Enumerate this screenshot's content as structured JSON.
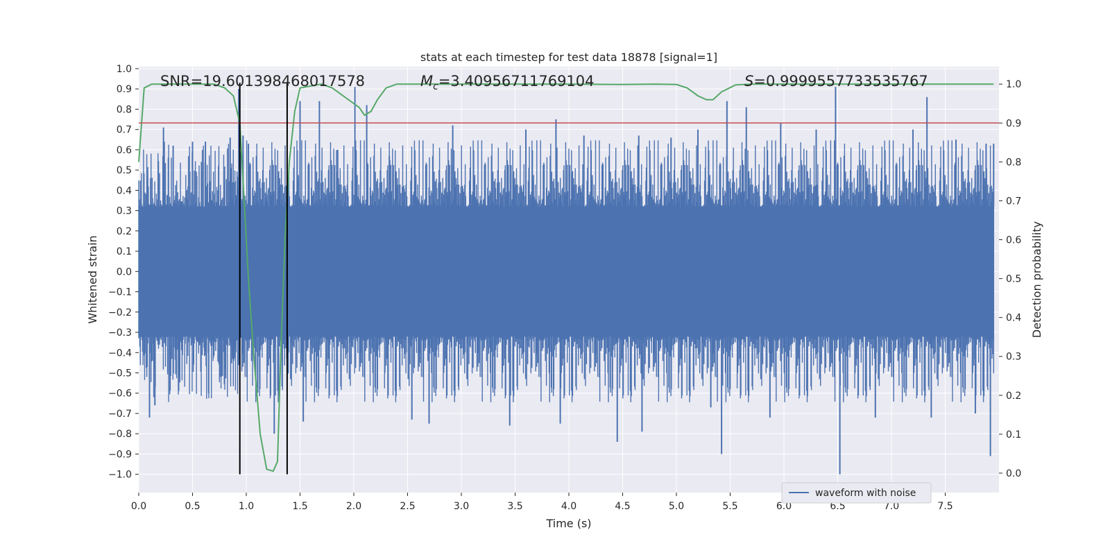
{
  "chart_data": {
    "type": "line",
    "title": "stats at each timestep for test data 18878 [signal=1]",
    "xlabel": "Time (s)",
    "ylabel": "Whitened strain",
    "y2label": "Detection probability",
    "xlim": [
      0,
      8
    ],
    "ylim": [
      -1.09,
      1.01
    ],
    "y2lim": [
      -0.05,
      1.045
    ],
    "x_ticks": [
      0.0,
      0.5,
      1.0,
      1.5,
      2.0,
      2.5,
      3.0,
      3.5,
      4.0,
      4.5,
      5.0,
      5.5,
      6.0,
      6.5,
      7.0,
      7.5
    ],
    "x_tick_labels": [
      "0.0",
      "0.5",
      "1.0",
      "1.5",
      "2.0",
      "2.5",
      "3.0",
      "3.5",
      "4.0",
      "4.5",
      "5.0",
      "5.5",
      "6.0",
      "6.5",
      "7.0",
      "7.5"
    ],
    "y_ticks": [
      1.0,
      0.9,
      0.8,
      0.7,
      0.6,
      0.5,
      0.4,
      0.3,
      0.2,
      0.1,
      0.0,
      -0.1,
      -0.2,
      -0.3,
      -0.4,
      -0.5,
      -0.6,
      -0.7,
      -0.8,
      -0.9,
      -1.0
    ],
    "y_tick_labels": [
      "1.0",
      "0.9",
      "0.8",
      "0.7",
      "0.6",
      "0.5",
      "0.4",
      "0.3",
      "0.2",
      "0.1",
      "0.0",
      "−0.1",
      "−0.2",
      "−0.3",
      "−0.4",
      "−0.5",
      "−0.6",
      "−0.7",
      "−0.8",
      "−0.9",
      "−1.0"
    ],
    "y2_ticks": [
      1.0,
      0.9,
      0.8,
      0.7,
      0.6,
      0.5,
      0.4,
      0.3,
      0.2,
      0.1,
      0.0
    ],
    "y2_tick_labels": [
      "1.0",
      "0.9",
      "0.8",
      "0.7",
      "0.6",
      "0.5",
      "0.4",
      "0.3",
      "0.2",
      "0.1",
      "0.0"
    ],
    "grid": true,
    "annotations": {
      "snr": "SNR=19.601398468017578",
      "mc_prefix": "M",
      "mc_sub": "c",
      "mc_value": "=3.40956711769104",
      "s_prefix": "S",
      "s_value": "=0.9999557733535767"
    },
    "vlines": [
      0.94,
      1.38
    ],
    "vline_range": [
      -1.0,
      0.93
    ],
    "threshold": 0.9,
    "waveform": {
      "name": "waveform with noise",
      "color": "#4c72b0",
      "envelope_amplitude": 0.32,
      "spikes": [
        {
          "t": 0.08,
          "y": 0.47
        },
        {
          "t": 0.1,
          "y": -0.72
        },
        {
          "t": 0.15,
          "y": -0.66
        },
        {
          "t": 0.23,
          "y": 0.71
        },
        {
          "t": 0.32,
          "y": 0.62
        },
        {
          "t": 0.5,
          "y": 0.64
        },
        {
          "t": 0.62,
          "y": 0.64
        },
        {
          "t": 0.65,
          "y": -0.6
        },
        {
          "t": 0.85,
          "y": 0.66
        },
        {
          "t": 0.93,
          "y": 0.9
        },
        {
          "t": 0.97,
          "y": 0.67
        },
        {
          "t": 1.02,
          "y": 0.63
        },
        {
          "t": 1.26,
          "y": -0.8
        },
        {
          "t": 1.5,
          "y": 0.84
        },
        {
          "t": 1.53,
          "y": -0.74
        },
        {
          "t": 1.68,
          "y": 0.84
        },
        {
          "t": 1.85,
          "y": 0.6
        },
        {
          "t": 2.01,
          "y": 0.91
        },
        {
          "t": 2.12,
          "y": 0.82
        },
        {
          "t": 2.33,
          "y": 0.57
        },
        {
          "t": 2.54,
          "y": -0.73
        },
        {
          "t": 2.7,
          "y": -0.75
        },
        {
          "t": 2.92,
          "y": 0.72
        },
        {
          "t": 3.45,
          "y": -0.76
        },
        {
          "t": 3.6,
          "y": 0.7
        },
        {
          "t": 3.88,
          "y": 0.75
        },
        {
          "t": 3.92,
          "y": -0.75
        },
        {
          "t": 4.14,
          "y": 0.67
        },
        {
          "t": 4.45,
          "y": -0.84
        },
        {
          "t": 4.65,
          "y": 0.67
        },
        {
          "t": 4.68,
          "y": -0.79
        },
        {
          "t": 4.95,
          "y": 0.66
        },
        {
          "t": 5.2,
          "y": 0.7
        },
        {
          "t": 5.32,
          "y": -0.67
        },
        {
          "t": 5.42,
          "y": -0.9
        },
        {
          "t": 5.47,
          "y": 0.84
        },
        {
          "t": 5.65,
          "y": 0.81
        },
        {
          "t": 5.87,
          "y": -0.72
        },
        {
          "t": 5.97,
          "y": 0.73
        },
        {
          "t": 6.3,
          "y": 0.7
        },
        {
          "t": 6.48,
          "y": 0.91
        },
        {
          "t": 6.52,
          "y": -1.0
        },
        {
          "t": 6.85,
          "y": -0.72
        },
        {
          "t": 7.2,
          "y": 0.7
        },
        {
          "t": 7.33,
          "y": 0.86
        },
        {
          "t": 7.37,
          "y": -0.72
        },
        {
          "t": 7.6,
          "y": 0.65
        },
        {
          "t": 7.78,
          "y": -0.7
        },
        {
          "t": 7.88,
          "y": 0.63
        },
        {
          "t": 7.92,
          "y": -0.91
        },
        {
          "t": 7.95,
          "y": 0.63
        }
      ]
    },
    "detection_probability": {
      "color": "#55a868",
      "x": [
        0.0,
        0.05,
        0.12,
        0.2,
        0.7,
        0.8,
        0.88,
        0.94,
        0.98,
        1.02,
        1.07,
        1.13,
        1.19,
        1.25,
        1.29,
        1.32,
        1.36,
        1.4,
        1.45,
        1.5,
        1.7,
        1.8,
        1.9,
        2.0,
        2.05,
        2.1,
        2.16,
        2.22,
        2.3,
        2.4,
        2.5,
        3.0,
        4.0,
        4.5,
        4.8,
        5.0,
        5.1,
        5.2,
        5.28,
        5.34,
        5.42,
        5.55,
        5.7,
        6.0,
        7.0,
        7.95
      ],
      "y": [
        0.8,
        0.99,
        1.0,
        1.0,
        1.0,
        0.99,
        0.97,
        0.9,
        0.7,
        0.5,
        0.3,
        0.1,
        0.01,
        0.005,
        0.03,
        0.3,
        0.6,
        0.8,
        0.93,
        0.99,
        1.0,
        0.99,
        0.97,
        0.95,
        0.94,
        0.92,
        0.93,
        0.96,
        0.99,
        1.0,
        1.0,
        1.0,
        1.0,
        0.999,
        1.0,
        0.999,
        0.99,
        0.97,
        0.96,
        0.96,
        0.98,
        0.998,
        1.0,
        1.0,
        1.0,
        1.0
      ]
    }
  }
}
